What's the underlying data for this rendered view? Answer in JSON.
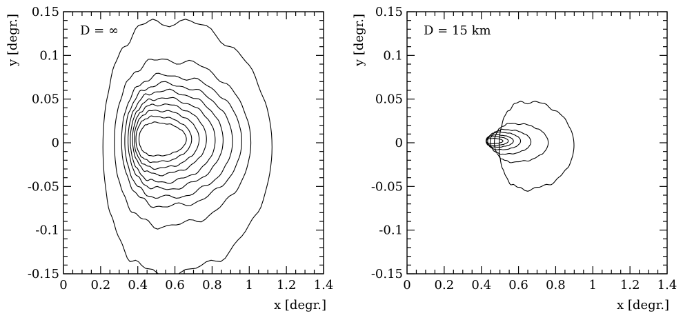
{
  "chart_data": [
    {
      "type": "contour",
      "panel_label": "D = ∞",
      "xlabel": "x [degr.]",
      "ylabel": "y [degr.]",
      "xlim": [
        0,
        1.4
      ],
      "ylim": [
        -0.15,
        0.15
      ],
      "x_ticks": [
        "0",
        "0.2",
        "0.4",
        "0.6",
        "0.8",
        "1",
        "1.2",
        "1.4"
      ],
      "y_ticks": [
        "0.15",
        "0.1",
        "0.05",
        "0",
        "-0.05",
        "-0.1",
        "-0.15"
      ],
      "contours": [
        {
          "cx": 0.57,
          "cy": -0.005,
          "hw": 0.65,
          "hh": 0.145,
          "sx": 0.6,
          "sy": 0.5
        },
        {
          "cx": 0.56,
          "cy": 0.0,
          "hw": 0.52,
          "hh": 0.095,
          "sx": 0.55,
          "sy": 0.35
        },
        {
          "cx": 0.56,
          "cy": 0.002,
          "hw": 0.45,
          "hh": 0.075,
          "sx": 0.45,
          "sy": 0.3
        },
        {
          "cx": 0.55,
          "cy": 0.002,
          "hw": 0.4,
          "hh": 0.065,
          "sx": 0.4,
          "sy": 0.25
        },
        {
          "cx": 0.54,
          "cy": 0.003,
          "hw": 0.35,
          "hh": 0.056,
          "sx": 0.35,
          "sy": 0.2
        },
        {
          "cx": 0.53,
          "cy": 0.003,
          "hw": 0.31,
          "hh": 0.048,
          "sx": 0.3,
          "sy": 0.2
        },
        {
          "cx": 0.52,
          "cy": 0.004,
          "hw": 0.27,
          "hh": 0.04,
          "sx": 0.3,
          "sy": 0.15
        },
        {
          "cx": 0.51,
          "cy": 0.004,
          "hw": 0.235,
          "hh": 0.033,
          "sx": 0.25,
          "sy": 0.15
        },
        {
          "cx": 0.5,
          "cy": 0.004,
          "hw": 0.2,
          "hh": 0.026,
          "sx": 0.2,
          "sy": 0.1
        },
        {
          "cx": 0.5,
          "cy": 0.004,
          "hw": 0.17,
          "hh": 0.019,
          "sx": 0.2,
          "sy": 0.1
        }
      ]
    },
    {
      "type": "contour",
      "panel_label": "D = 15 km",
      "xlabel": "x [degr.]",
      "ylabel": "y [degr.]",
      "xlim": [
        0,
        1.4
      ],
      "ylim": [
        -0.15,
        0.15
      ],
      "x_ticks": [
        "0",
        "0.2",
        "0.4",
        "0.6",
        "0.8",
        "1",
        "1.2",
        "1.4"
      ],
      "y_ticks": [
        "0.15",
        "0.1",
        "0.05",
        "0",
        "-0.05",
        "-0.1",
        "-0.15"
      ],
      "contours": [
        {
          "cx": 0.65,
          "cy": -0.003,
          "hw": 0.28,
          "hh": 0.05,
          "sx": 0.45,
          "sy": 0.3
        },
        {
          "cx": 0.58,
          "cy": 0.0,
          "hw": 0.2,
          "hh": 0.022,
          "sx": 0.4,
          "sy": 0.25
        },
        {
          "cx": 0.53,
          "cy": 0.001,
          "hw": 0.15,
          "hh": 0.014,
          "sx": 0.35,
          "sy": 0.2
        },
        {
          "cx": 0.5,
          "cy": 0.002,
          "hw": 0.12,
          "hh": 0.01,
          "sx": 0.3,
          "sy": 0.15
        },
        {
          "cx": 0.48,
          "cy": 0.002,
          "hw": 0.1,
          "hh": 0.007,
          "sx": 0.3,
          "sy": 0.15
        },
        {
          "cx": 0.47,
          "cy": 0.002,
          "hw": 0.08,
          "hh": 0.005,
          "sx": 0.25,
          "sy": 0.1
        },
        {
          "cx": 0.46,
          "cy": 0.002,
          "hw": 0.06,
          "hh": 0.003,
          "sx": 0.25,
          "sy": 0.1
        }
      ]
    }
  ]
}
